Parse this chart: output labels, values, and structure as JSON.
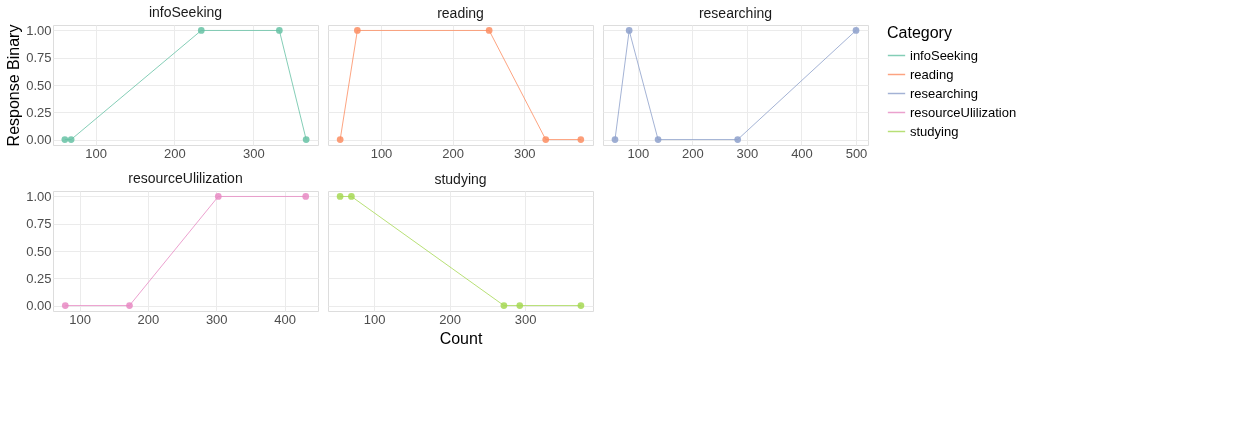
{
  "chart_data": [
    {
      "type": "line",
      "title": "infoSeeking",
      "ylabel": "Response Binary",
      "legend": "right",
      "legend_title": "Category",
      "marker": "circle",
      "line_style": "solid",
      "grid": true,
      "xlim": [
        46,
        382
      ],
      "xticks": [
        100,
        200,
        300
      ],
      "ylim": [
        -0.05,
        1.05
      ],
      "yticks": [
        {
          "value": 0,
          "label": "0.00"
        },
        {
          "value": 0.25,
          "label": "0.25"
        },
        {
          "value": 0.5,
          "label": "0.50"
        },
        {
          "value": 0.75,
          "label": "0.75"
        },
        {
          "value": 1,
          "label": "1.00"
        }
      ],
      "series": [
        {
          "name": "infoSeeking",
          "color": "#66c2a5",
          "x": [
            61,
            69,
            234,
            333,
            367
          ],
          "values": [
            0,
            0,
            1,
            1,
            0
          ]
        }
      ]
    },
    {
      "type": "line",
      "title": "reading",
      "marker": "circle",
      "line_style": "solid",
      "grid": true,
      "tick_labels": "x",
      "xlim": [
        26,
        396
      ],
      "xticks": [
        100,
        200,
        300
      ],
      "ylim": [
        -0.05,
        1.05
      ],
      "yticks": [
        0,
        0.25,
        0.5,
        0.75,
        1
      ],
      "series": [
        {
          "name": "reading",
          "color": "#fc8d62",
          "x": [
            43,
            67,
            251,
            330,
            379
          ],
          "values": [
            0,
            1,
            1,
            0,
            0
          ]
        }
      ]
    },
    {
      "type": "line",
      "title": "researching",
      "marker": "circle",
      "line_style": "solid",
      "grid": true,
      "tick_labels": "x",
      "xlim": [
        36,
        522
      ],
      "xticks": [
        100,
        200,
        300,
        400,
        500
      ],
      "ylim": [
        -0.05,
        1.05
      ],
      "yticks": [
        0,
        0.25,
        0.5,
        0.75,
        1
      ],
      "series": [
        {
          "name": "researching",
          "color": "#8da0cb",
          "x": [
            58,
            84,
            137,
            283,
            500
          ],
          "values": [
            0,
            1,
            0,
            0,
            1
          ]
        }
      ]
    },
    {
      "type": "line",
      "title": "resourceUlilization",
      "marker": "circle",
      "line_style": "solid",
      "grid": true,
      "xlim": [
        61,
        449
      ],
      "xticks": [
        100,
        200,
        300,
        400
      ],
      "ylim": [
        -0.05,
        1.05
      ],
      "yticks": [
        {
          "value": 0,
          "label": "0.00"
        },
        {
          "value": 0.25,
          "label": "0.25"
        },
        {
          "value": 0.5,
          "label": "0.50"
        },
        {
          "value": 0.75,
          "label": "0.75"
        },
        {
          "value": 1,
          "label": "1.00"
        }
      ],
      "series": [
        {
          "name": "resourceUlilization",
          "color": "#e78ac3",
          "x": [
            79,
            173,
            303,
            431
          ],
          "values": [
            0,
            0,
            1,
            1
          ]
        }
      ]
    },
    {
      "type": "line",
      "title": "studying",
      "xlabel": "Count",
      "marker": "circle",
      "line_style": "solid",
      "grid": true,
      "tick_labels": "x",
      "xlim": [
        39,
        390
      ],
      "xticks": [
        100,
        200,
        300
      ],
      "ylim": [
        -0.05,
        1.05
      ],
      "yticks": [
        0,
        0.25,
        0.5,
        0.75,
        1
      ],
      "series": [
        {
          "name": "studying",
          "color": "#a6d854",
          "x": [
            55,
            70,
            272,
            293,
            374
          ],
          "values": [
            1,
            1,
            0,
            0,
            0
          ]
        }
      ]
    }
  ]
}
